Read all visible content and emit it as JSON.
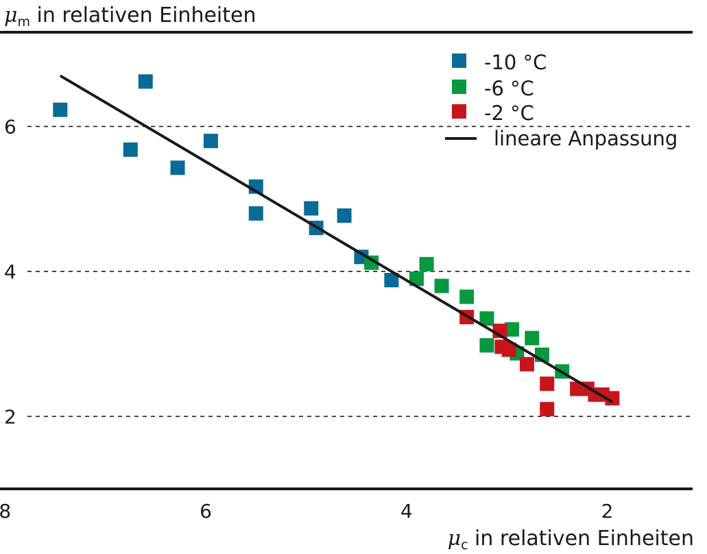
{
  "chart_data": {
    "type": "scatter",
    "y_title": {
      "symbol": "μ",
      "subscript": "m",
      "text": " in relativen Einheiten"
    },
    "x_title": {
      "symbol": "μ",
      "subscript": "c",
      "text": " in relativen Einheiten"
    },
    "x_axis": {
      "reversed": true,
      "range": [
        8.05,
        1.15
      ],
      "ticks": [
        "8",
        "6",
        "4",
        "2"
      ],
      "tick_values": [
        8,
        6,
        4,
        2
      ]
    },
    "y_axis": {
      "range": [
        1.0,
        7.3
      ],
      "ticks": [
        "6",
        "4",
        "2"
      ],
      "tick_values": [
        6,
        4,
        2
      ],
      "grid": "dashed"
    },
    "legend": {
      "placement": "top-right"
    },
    "series": [
      {
        "name": "-10 °C",
        "color": "#0a6b96",
        "points": [
          [
            7.45,
            6.23
          ],
          [
            6.6,
            6.62
          ],
          [
            6.75,
            5.68
          ],
          [
            6.28,
            5.43
          ],
          [
            5.95,
            5.8
          ],
          [
            5.5,
            5.17
          ],
          [
            5.5,
            4.8
          ],
          [
            4.95,
            4.87
          ],
          [
            4.9,
            4.6
          ],
          [
            4.62,
            4.77
          ],
          [
            4.45,
            4.2
          ],
          [
            4.15,
            3.88
          ]
        ]
      },
      {
        "name": "-6 °C",
        "color": "#069940",
        "points": [
          [
            4.35,
            4.12
          ],
          [
            3.8,
            4.1
          ],
          [
            3.9,
            3.9
          ],
          [
            3.65,
            3.8
          ],
          [
            3.4,
            3.65
          ],
          [
            3.2,
            3.35
          ],
          [
            3.2,
            2.98
          ],
          [
            2.95,
            3.2
          ],
          [
            2.9,
            2.87
          ],
          [
            2.75,
            3.08
          ],
          [
            2.65,
            2.85
          ],
          [
            2.45,
            2.62
          ]
        ]
      },
      {
        "name": "-2 °C",
        "color": "#c8151c",
        "points": [
          [
            3.4,
            3.37
          ],
          [
            3.07,
            3.18
          ],
          [
            3.05,
            2.96
          ],
          [
            2.98,
            2.92
          ],
          [
            2.8,
            2.72
          ],
          [
            2.6,
            2.45
          ],
          [
            2.6,
            2.1
          ],
          [
            2.3,
            2.38
          ],
          [
            2.2,
            2.38
          ],
          [
            2.12,
            2.3
          ],
          [
            2.05,
            2.3
          ],
          [
            1.95,
            2.25
          ]
        ]
      }
    ],
    "fit_line": {
      "name": "lineare Anpassung",
      "color": "#1a1a1a",
      "points": [
        [
          7.45,
          6.7
        ],
        [
          1.95,
          2.2
        ]
      ]
    }
  }
}
